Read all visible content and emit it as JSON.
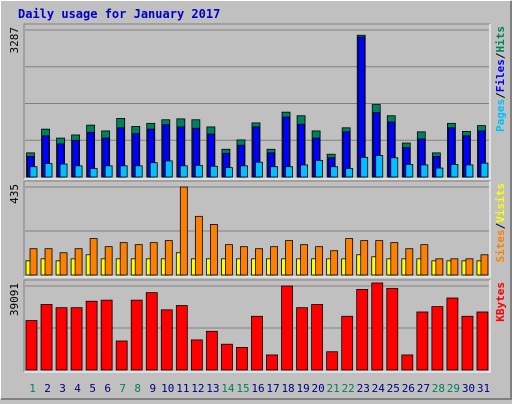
{
  "chart_data": {
    "title": "Daily usage for January 2017",
    "type": "bar",
    "categories": [
      "1",
      "2",
      "3",
      "4",
      "5",
      "6",
      "7",
      "8",
      "9",
      "10",
      "11",
      "12",
      "13",
      "14",
      "15",
      "16",
      "17",
      "18",
      "19",
      "20",
      "21",
      "22",
      "23",
      "24",
      "25",
      "26",
      "27",
      "28",
      "29",
      "30",
      "31"
    ],
    "weekend_days": [
      1,
      7,
      8,
      14,
      15,
      21,
      22,
      28,
      29
    ],
    "colors": {
      "background": "#c0c0c0",
      "panel": "#c0c0c0",
      "title": "#0000cc",
      "hits": "#00805c",
      "files": "#0000ff",
      "pages": "#00c0ff",
      "visits": "#ffff00",
      "sites": "#ff8000",
      "kbytes": "#ff0000",
      "weekday_label": "#000080",
      "weekend_label": "#00805c"
    },
    "panels": [
      {
        "id": "hits-files-pages",
        "ymax_label": "3287",
        "ylim": [
          0,
          3287
        ],
        "series": [
          {
            "name": "Hits",
            "values": [
              540,
              1070,
              870,
              940,
              1160,
              1030,
              1310,
              1130,
              1200,
              1280,
              1300,
              1280,
              1120,
              620,
              830,
              1210,
              620,
              1450,
              1370,
              1030,
              510,
              1100,
              3170,
              1620,
              1370,
              760,
              1010,
              540,
              1200,
              1020,
              1150
            ]
          },
          {
            "name": "Files",
            "values": [
              460,
              920,
              740,
              820,
              1000,
              870,
              1100,
              970,
              1070,
              1170,
              1120,
              1090,
              960,
              530,
              710,
              1120,
              540,
              1340,
              1180,
              870,
              430,
              1010,
              3130,
              1440,
              1230,
              660,
              850,
              460,
              1100,
              920,
              1030
            ]
          },
          {
            "name": "Pages",
            "values": [
              230,
              300,
              290,
              250,
              190,
              250,
              250,
              250,
              320,
              360,
              250,
              260,
              240,
              210,
              250,
              330,
              230,
              230,
              270,
              370,
              230,
              190,
              440,
              480,
              430,
              280,
              270,
              200,
              280,
              270,
              310
            ]
          }
        ]
      },
      {
        "id": "visits-sites",
        "ymax_label": "435",
        "ylim": [
          0,
          435
        ],
        "series": [
          {
            "name": "Visits",
            "values": [
              70,
              80,
              70,
              80,
              100,
              80,
              80,
              80,
              80,
              80,
              110,
              80,
              80,
              80,
              80,
              80,
              80,
              80,
              80,
              80,
              80,
              80,
              100,
              90,
              80,
              80,
              80,
              70,
              70,
              70,
              70
            ]
          },
          {
            "name": "Sites",
            "values": [
              130,
              130,
              110,
              130,
              180,
              140,
              160,
              150,
              160,
              170,
              435,
              290,
              250,
              150,
              140,
              130,
              140,
              170,
              150,
              140,
              120,
              180,
              170,
              170,
              160,
              130,
              150,
              80,
              80,
              80,
              100
            ]
          }
        ]
      },
      {
        "id": "kbytes",
        "ymax_label": "39091",
        "ylim": [
          0,
          39091
        ],
        "series": [
          {
            "name": "KBytes",
            "values": [
              23000,
              30500,
              29000,
              29000,
              32000,
              32500,
              13500,
              32500,
              36000,
              28000,
              30000,
              14000,
              18000,
              12000,
              10500,
              25000,
              7000,
              39100,
              29000,
              30500,
              8500,
              25000,
              37500,
              40500,
              38000,
              7000,
              27000,
              29500,
              33500,
              25000,
              27000
            ]
          }
        ]
      }
    ],
    "legends": [
      {
        "panel": "hits-files-pages",
        "items": [
          {
            "text": "Pages",
            "color": "#00c0ff"
          },
          {
            "text": "/",
            "color": "#000000"
          },
          {
            "text": "Files",
            "color": "#0000ff"
          },
          {
            "text": "/",
            "color": "#000000"
          },
          {
            "text": "Hits",
            "color": "#00805c"
          }
        ]
      },
      {
        "panel": "visits-sites",
        "items": [
          {
            "text": "Sites",
            "color": "#ff8000"
          },
          {
            "text": "/",
            "color": "#000000"
          },
          {
            "text": "Visits",
            "color": "#ffff00"
          }
        ]
      },
      {
        "panel": "kbytes",
        "items": [
          {
            "text": "KBytes",
            "color": "#ff0000"
          }
        ]
      }
    ]
  }
}
